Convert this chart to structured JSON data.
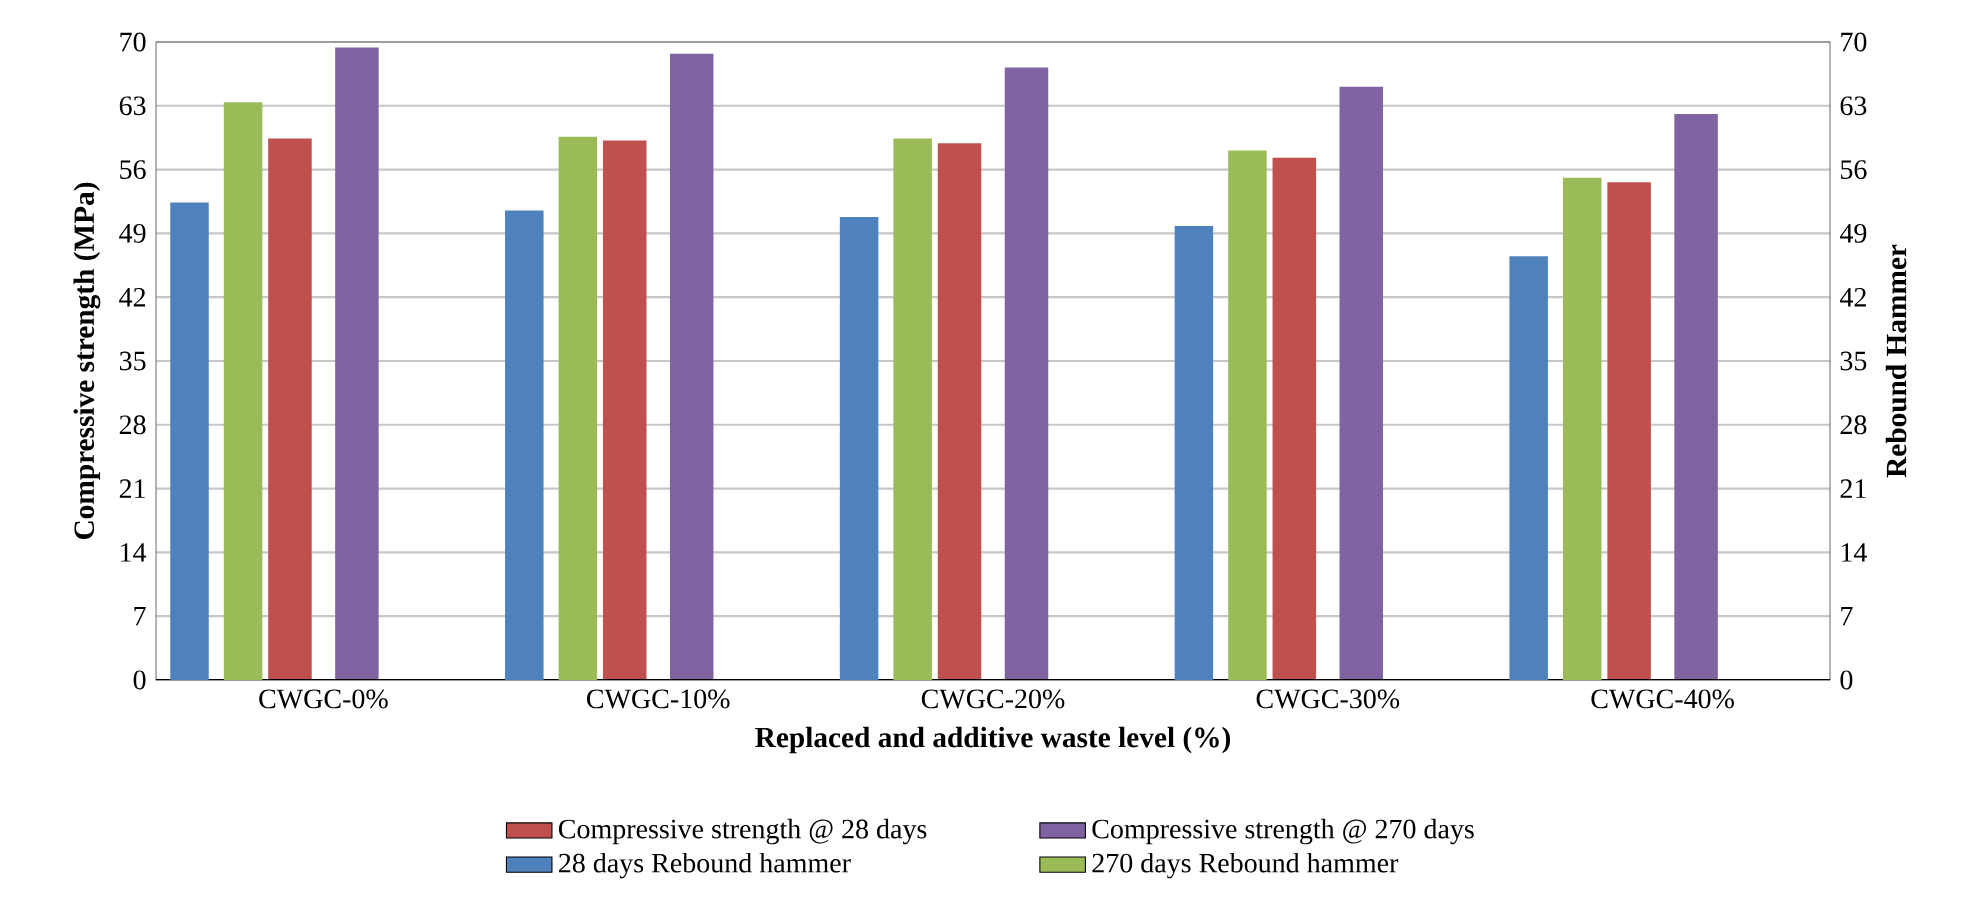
{
  "chart_data": {
    "type": "bar",
    "xlabel": "Replaced and additive waste level (%)",
    "ylabel": "Compressive strength (MPa)",
    "y2label": "Rebound Hammer",
    "categories": [
      "CWGC-0%",
      "CWGC-10%",
      "CWGC-20%",
      "CWGC-30%",
      "CWGC-40%"
    ],
    "series": [
      {
        "name": "Compressive strength @ 28 days",
        "color": "#c0504d",
        "values": [
          59.4,
          59.2,
          58.9,
          57.3,
          54.6
        ]
      },
      {
        "name": "Compressive strength @ 270 days",
        "color": "#8064a2",
        "values": [
          69.4,
          68.7,
          67.2,
          65.1,
          62.1
        ]
      },
      {
        "name": "28 days Rebound hammer",
        "color": "#4f81bd",
        "axis": "y2",
        "values": [
          52.4,
          51.5,
          50.8,
          49.8,
          46.5
        ]
      },
      {
        "name": "270 days Rebound hammer",
        "color": "#9bbb59",
        "axis": "y2",
        "values": [
          63.4,
          59.6,
          59.4,
          58.1,
          55.1
        ]
      }
    ],
    "ylim": [
      0,
      70
    ],
    "yticks": [
      0,
      7,
      14,
      21,
      28,
      35,
      42,
      49,
      56,
      63,
      70
    ],
    "y2lim": [
      0,
      70
    ],
    "y2ticks": [
      0,
      7,
      14,
      21,
      28,
      35,
      42,
      49,
      56,
      63,
      70
    ],
    "grid": "y",
    "legend": "bottom"
  }
}
